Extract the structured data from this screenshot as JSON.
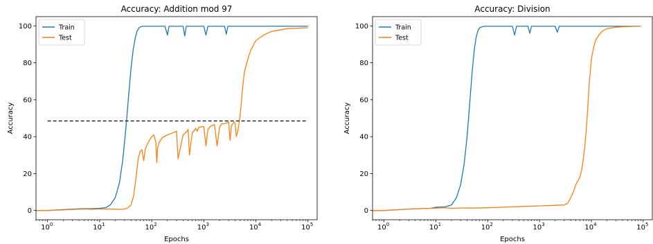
{
  "chart_data": [
    {
      "type": "line",
      "title": "Accuracy: Addition mod 97",
      "xlabel": "Epochs",
      "ylabel": "Accuracy",
      "xscale": "log",
      "xlim": [
        0.6,
        150000
      ],
      "ylim": [
        -5,
        105
      ],
      "x_ticks": [
        {
          "value": 1,
          "base": "10",
          "exp": "0"
        },
        {
          "value": 10,
          "base": "10",
          "exp": "1"
        },
        {
          "value": 100,
          "base": "10",
          "exp": "2"
        },
        {
          "value": 1000,
          "base": "10",
          "exp": "3"
        },
        {
          "value": 10000,
          "base": "10",
          "exp": "4"
        },
        {
          "value": 100000,
          "base": "10",
          "exp": "5"
        }
      ],
      "y_ticks": [
        "0",
        "20",
        "40",
        "60",
        "80",
        "100"
      ],
      "legend": {
        "position": "upper-left",
        "entries": [
          "Train",
          "Test"
        ]
      },
      "series": [
        {
          "name": "Train",
          "color": "#1f77b4",
          "x": [
            0.6,
            1,
            2,
            3,
            5,
            7,
            10,
            13,
            16,
            20,
            24,
            28,
            32,
            36,
            40,
            44,
            48,
            52,
            57,
            62,
            68,
            75,
            85,
            100,
            120,
            150,
            180,
            200,
            215,
            230,
            300,
            400,
            430,
            460,
            700,
            1000,
            1100,
            1200,
            1800,
            2500,
            2700,
            2900,
            4000,
            6000,
            10000,
            20000,
            50000,
            100000
          ],
          "y": [
            0,
            0,
            0.5,
            0.8,
            1.0,
            1.0,
            1.2,
            1.5,
            3,
            7,
            15,
            28,
            45,
            62,
            77,
            87,
            93,
            97,
            99,
            99.6,
            99.8,
            99.8,
            99.8,
            99.8,
            99.8,
            99.8,
            99.8,
            95,
            99.8,
            99.8,
            99.8,
            99.8,
            94.5,
            99.8,
            99.8,
            99.8,
            95,
            99.8,
            99.8,
            99.8,
            95.5,
            99.8,
            99.8,
            99.8,
            99.8,
            99.8,
            99.8,
            99.8
          ]
        },
        {
          "name": "Test",
          "color": "#ff7f0e",
          "x": [
            0.6,
            1,
            2,
            3,
            5,
            7,
            10,
            15,
            20,
            25,
            30,
            35,
            40,
            45,
            50,
            55,
            60,
            65,
            70,
            75,
            80,
            90,
            100,
            110,
            120,
            125,
            130,
            140,
            160,
            200,
            250,
            280,
            300,
            320,
            400,
            480,
            500,
            530,
            600,
            700,
            750,
            800,
            1000,
            1100,
            1200,
            1400,
            1600,
            1800,
            2000,
            2200,
            2600,
            3000,
            3200,
            3400,
            3800,
            4000,
            4200,
            4500,
            5000,
            5500,
            6000,
            7000,
            8000,
            10000,
            14000,
            20000,
            40000,
            100000
          ],
          "y": [
            0,
            0,
            0.3,
            0.6,
            0.8,
            0.7,
            0.8,
            0.8,
            0.7,
            0.6,
            0.8,
            1.5,
            3,
            8,
            18,
            28,
            32,
            33,
            27,
            33,
            35,
            38,
            40,
            41,
            37,
            26,
            34,
            37,
            39.5,
            41,
            42,
            42.5,
            43,
            28,
            41,
            43,
            44,
            30,
            42,
            44.5,
            43,
            45,
            45.5,
            35,
            44,
            46,
            46.5,
            35,
            45,
            47,
            47,
            48,
            38,
            46,
            48,
            47,
            40,
            43,
            52,
            65,
            75,
            82,
            87,
            92,
            95,
            97,
            98.5,
            99
          ]
        }
      ],
      "reference_line": {
        "y": 48.5,
        "style": "dashed",
        "color": "#000000"
      }
    },
    {
      "type": "line",
      "title": "Accuracy: Division",
      "xlabel": "Epochs",
      "ylabel": "Accuracy",
      "xscale": "log",
      "xlim": [
        0.6,
        150000
      ],
      "ylim": [
        -5,
        105
      ],
      "x_ticks": [
        {
          "value": 1,
          "base": "10",
          "exp": "0"
        },
        {
          "value": 10,
          "base": "10",
          "exp": "1"
        },
        {
          "value": 100,
          "base": "10",
          "exp": "2"
        },
        {
          "value": 1000,
          "base": "10",
          "exp": "3"
        },
        {
          "value": 10000,
          "base": "10",
          "exp": "4"
        },
        {
          "value": 100000,
          "base": "10",
          "exp": "5"
        }
      ],
      "y_ticks": [
        "0",
        "20",
        "40",
        "60",
        "80",
        "100"
      ],
      "legend": {
        "position": "upper-left",
        "entries": [
          "Train",
          "Test"
        ]
      },
      "series": [
        {
          "name": "Train",
          "color": "#1f77b4",
          "x": [
            0.6,
            1,
            2,
            3,
            5,
            8,
            10,
            15,
            20,
            25,
            30,
            35,
            40,
            45,
            50,
            55,
            60,
            65,
            70,
            80,
            90,
            100,
            120,
            150,
            200,
            250,
            300,
            330,
            360,
            500,
            600,
            650,
            700,
            1000,
            1500,
            2000,
            2200,
            2400,
            3500,
            5000,
            10000,
            20000,
            50000,
            90000
          ],
          "y": [
            0,
            0,
            0.5,
            0.8,
            1.0,
            1.2,
            1.8,
            2.0,
            3,
            7,
            14,
            25,
            40,
            58,
            75,
            87,
            94,
            97.5,
            99,
            99.6,
            99.8,
            99.8,
            99.8,
            99.8,
            99.8,
            99.8,
            99.8,
            95,
            99.8,
            99.8,
            99.8,
            96,
            99.8,
            99.8,
            99.8,
            99.8,
            96.5,
            99.8,
            99.8,
            99.8,
            99.8,
            99.8,
            99.8,
            99.8
          ]
        },
        {
          "name": "Test",
          "color": "#ff7f0e",
          "x": [
            0.6,
            1,
            2,
            3,
            5,
            8,
            10,
            15,
            20,
            30,
            50,
            100,
            200,
            500,
            1000,
            2000,
            3000,
            3500,
            4000,
            4500,
            5000,
            5500,
            6000,
            6500,
            7000,
            7500,
            8000,
            8500,
            9000,
            9500,
            10000,
            11000,
            12000,
            14000,
            16000,
            20000,
            30000,
            50000,
            90000
          ],
          "y": [
            0,
            0,
            0.5,
            0.8,
            1.0,
            1.2,
            1.3,
            1.5,
            1.2,
            1.4,
            1.3,
            1.5,
            1.8,
            2.2,
            2.5,
            2.8,
            3,
            4,
            7,
            10,
            14,
            16,
            18,
            22,
            28,
            35,
            44,
            55,
            67,
            75,
            82,
            88,
            92,
            95,
            97,
            98.5,
            99.3,
            99.6,
            99.8
          ]
        }
      ]
    }
  ]
}
